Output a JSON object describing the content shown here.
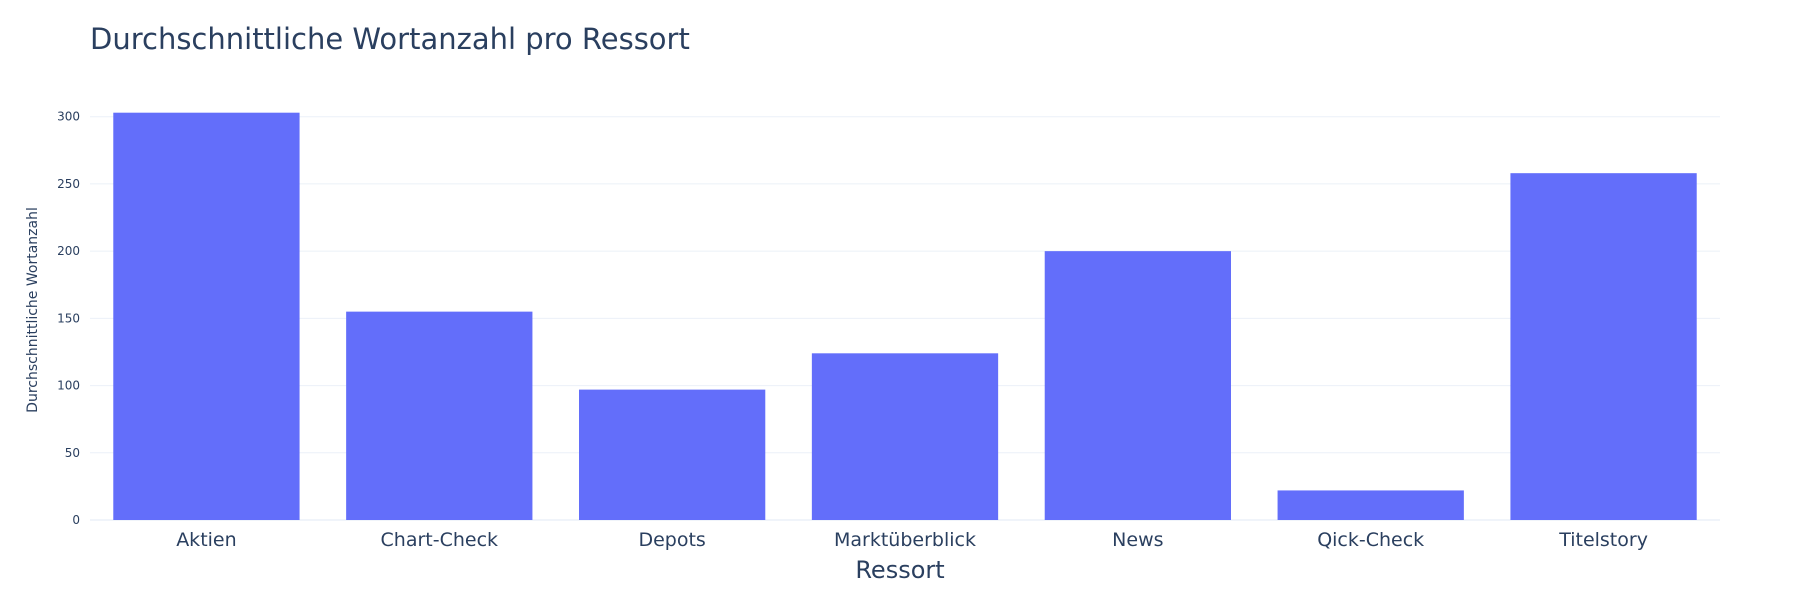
{
  "chart_data": {
    "type": "bar",
    "title": "Durchschnittliche Wortanzahl pro Ressort",
    "xlabel": "Ressort",
    "ylabel": "Durchschnittliche Wortanzahl",
    "categories": [
      "Aktien",
      "Chart-Check",
      "Depots",
      "Marktüberblick",
      "News",
      "Qick-Check",
      "Titelstory"
    ],
    "values": [
      303,
      155,
      97,
      124,
      200,
      22,
      258
    ],
    "ylim": [
      0,
      305
    ],
    "yticks": [
      0,
      50,
      100,
      150,
      200,
      250,
      300
    ],
    "grid": true,
    "legend": "none",
    "bar_color": "#636efa",
    "grid_color": "#ebf0f8",
    "text_color": "#2a3f5f"
  }
}
